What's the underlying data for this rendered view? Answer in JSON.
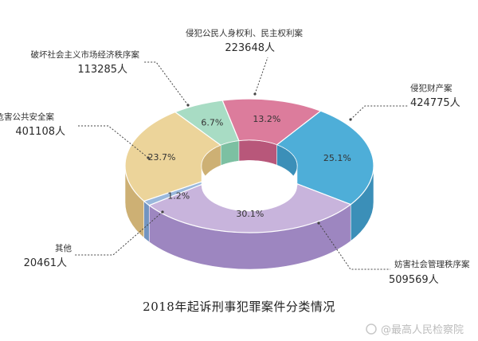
{
  "chart_data": {
    "type": "pie",
    "title": "2018年起诉刑事犯罪案件分类情况",
    "unit": "人",
    "slices": [
      {
        "name": "侵犯财产案",
        "value": 424775,
        "percent": "25.1%",
        "color": "#4eaed8",
        "side": "#3b8fb8"
      },
      {
        "name": "妨害社会管理秩序案",
        "value": 509569,
        "percent": "30.1%",
        "color": "#c8b4dc",
        "side": "#9d86c0"
      },
      {
        "name": "其他",
        "value": 20461,
        "percent": "1.2%",
        "color": "#9ab8dc",
        "side": "#7294c0"
      },
      {
        "name": "危害公共安全案",
        "value": 401108,
        "percent": "23.7%",
        "color": "#ecd49a",
        "side": "#cdb074"
      },
      {
        "name": "破坏社会主义市场经济秩序案",
        "value": 113285,
        "percent": "6.7%",
        "color": "#a8dcc4",
        "side": "#7cc0a2"
      },
      {
        "name": "侵犯公民人身权利、民主权利案",
        "value": 223648,
        "percent": "13.2%",
        "color": "#dc7c9c",
        "side": "#b8577a"
      }
    ]
  },
  "watermark": {
    "text": "@最高人民检察院"
  }
}
